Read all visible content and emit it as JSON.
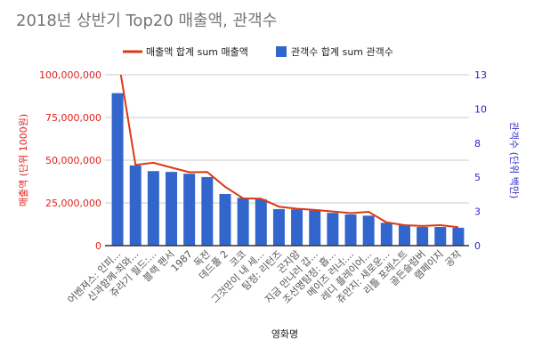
{
  "chart_data": {
    "type": "bar+line",
    "title": "2018년 상반기 Top20 매출액, 관객수",
    "xlabel": "영화명",
    "ylabel_left": "매출액 (단위 1000원)",
    "ylabel_right": "관객수 (단위 백만)",
    "legend_position": "top",
    "grid": true,
    "categories": [
      "어벤져스: 인피...",
      "신과함께-죄와...",
      "쥬라기 월드:...",
      "블랙 팬서",
      "1987",
      "독전",
      "데드풀 2",
      "코코",
      "그것만이 내 세...",
      "탐정: 리턴즈",
      "곤지암",
      "지금 만나러 갑...",
      "조선명탐정: 흡...",
      "메이즈 러너:...",
      "레디 플레이어...",
      "쥬만지: 새로운...",
      "리틀 포레스트",
      "골든슬럼버",
      "램페이지",
      "공작"
    ],
    "left_axis": {
      "min": 0,
      "max": 100000000,
      "ticks": [
        "0",
        "25,000,000",
        "50,000,000",
        "75,000,000",
        "100,000,000"
      ],
      "tick_values": [
        0,
        25000000,
        50000000,
        75000000,
        100000000
      ],
      "color": "#e0201b"
    },
    "right_axis": {
      "min": 0,
      "max": 13,
      "ticks": [
        "0",
        "3",
        "5",
        "8",
        "10",
        "13"
      ],
      "tick_values": [
        0,
        2.6,
        5.2,
        7.8,
        10.4,
        13
      ],
      "color": "#2a28c8"
    },
    "series": [
      {
        "name": "매출액 합계 sum 매출액",
        "type": "line",
        "axis": "left",
        "color": "#dc3912",
        "values": [
          112000000,
          47300000,
          48500000,
          45700000,
          43000000,
          43100000,
          34400000,
          27700000,
          27500000,
          22800000,
          21600000,
          20900000,
          20000000,
          19000000,
          19800000,
          13600000,
          12000000,
          11500000,
          12000000,
          10800000
        ]
      },
      {
        "name": "관객수 합계 sum 관객수",
        "type": "bar",
        "axis": "right",
        "color": "#3366cc",
        "values": [
          11.6,
          6.1,
          5.67,
          5.61,
          5.47,
          5.22,
          3.93,
          3.64,
          3.53,
          2.78,
          2.76,
          2.67,
          2.49,
          2.37,
          2.28,
          1.74,
          1.56,
          1.42,
          1.42,
          1.36
        ]
      }
    ]
  }
}
